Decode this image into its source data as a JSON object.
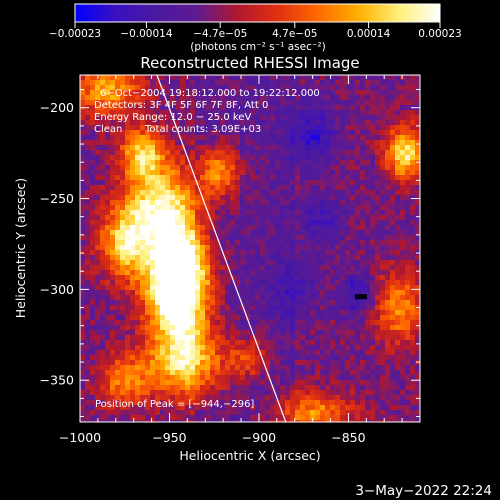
{
  "chart_data": {
    "type": "heatmap",
    "title": "Reconstructed RHESSI Image",
    "xlabel": "Heliocentric X (arcsec)",
    "ylabel": "Heliocentric Y (arcsec)",
    "xlim": [
      -1000,
      -810
    ],
    "ylim": [
      -373,
      -182
    ],
    "x_ticks": [
      -1000,
      -950,
      -900,
      -850
    ],
    "x_tick_labels": [
      "−1000",
      "−950",
      "−900",
      "−850"
    ],
    "y_ticks": [
      -200,
      -250,
      -300,
      -350
    ],
    "y_tick_labels": [
      "−200",
      "−250",
      "−300",
      "−350"
    ],
    "colorbar": {
      "range": [
        -0.00023,
        0.00023
      ],
      "tick_values": [
        -0.00023,
        -0.00014,
        -4.7e-05,
        4.7e-05,
        0.00014,
        0.00023
      ],
      "tick_labels": [
        "−0.00023",
        "−0.00014",
        "−4.7e−05",
        "4.7e−05",
        "0.00014",
        "0.00023"
      ],
      "units": "(photons cm⁻² s⁻¹ asec⁻²)",
      "stops": [
        "#0000ff",
        "#3a10c0",
        "#4a1aa0",
        "#5e1a90",
        "#b01830",
        "#e03010",
        "#ff6a00",
        "#ffb000",
        "#fff07a",
        "#ffffff"
      ]
    },
    "annotations": {
      "time_range": "6−Oct−2004 19:18:12.000 to 19:22:12.000",
      "detectors": "Detectors: 3F 4F 5F 6F 7F 8F, Att 0",
      "energy": "Energy Range: 12.0 − 25.0 keV",
      "clean": "Clean",
      "counts": "Total counts: 3.09E+03",
      "peak": "Position of Peak = [−944,−296]"
    },
    "peak": {
      "x": -944,
      "y": -296
    },
    "limb_line": [
      {
        "x": -957,
        "y": -182
      },
      {
        "x": -885,
        "y": -373
      }
    ],
    "hot_blobs": [
      {
        "x": -945,
        "y": -296,
        "sx": 12,
        "sy": 20,
        "amp": 1.0
      },
      {
        "x": -955,
        "y": -255,
        "sx": 14,
        "sy": 16,
        "amp": 0.55
      },
      {
        "x": -965,
        "y": -225,
        "sx": 9,
        "sy": 10,
        "amp": 0.45
      },
      {
        "x": -975,
        "y": -275,
        "sx": 10,
        "sy": 14,
        "amp": 0.45
      },
      {
        "x": -940,
        "y": -340,
        "sx": 15,
        "sy": 14,
        "amp": 0.5
      },
      {
        "x": -985,
        "y": -190,
        "sx": 14,
        "sy": 10,
        "amp": 0.4
      },
      {
        "x": -975,
        "y": -350,
        "sx": 10,
        "sy": 10,
        "amp": 0.35
      },
      {
        "x": -922,
        "y": -235,
        "sx": 8,
        "sy": 10,
        "amp": 0.4
      },
      {
        "x": -818,
        "y": -225,
        "sx": 8,
        "sy": 10,
        "amp": 0.55
      },
      {
        "x": -822,
        "y": -310,
        "sx": 10,
        "sy": 14,
        "amp": 0.35
      },
      {
        "x": -870,
        "y": -368,
        "sx": 16,
        "sy": 8,
        "amp": 0.35
      },
      {
        "x": -905,
        "y": -338,
        "sx": 8,
        "sy": 8,
        "amp": 0.25
      }
    ],
    "cold_blobs": [
      {
        "x": -870,
        "y": -215,
        "sx": 9,
        "sy": 12,
        "amp": 0.55
      },
      {
        "x": -865,
        "y": -262,
        "sx": 9,
        "sy": 10,
        "amp": 0.4
      },
      {
        "x": -845,
        "y": -302,
        "sx": 7,
        "sy": 8,
        "amp": 0.55
      },
      {
        "x": -880,
        "y": -300,
        "sx": 9,
        "sy": 12,
        "amp": 0.35
      }
    ],
    "min_pixel": {
      "x": -843,
      "y": -304
    }
  },
  "footer": {
    "date": "3−May−2022 22:24"
  }
}
